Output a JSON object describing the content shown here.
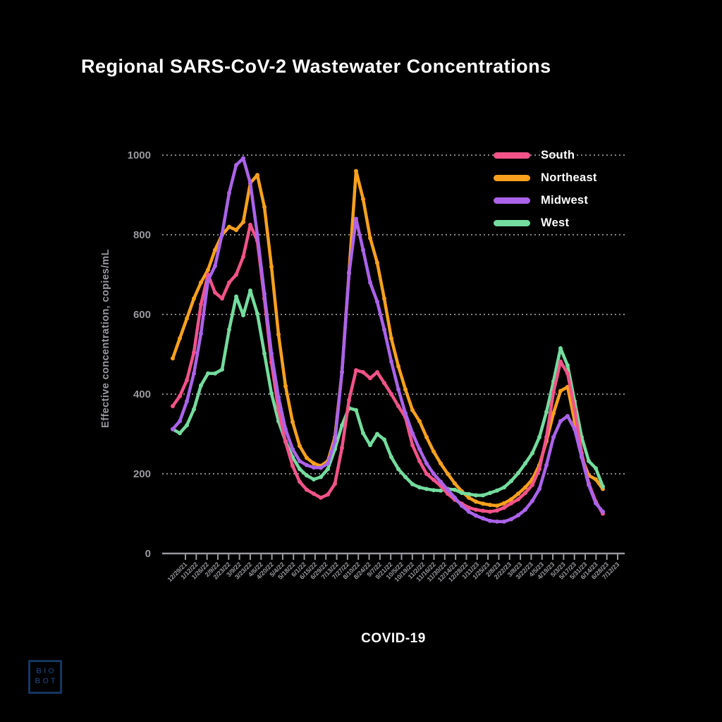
{
  "title": "Regional SARS-CoV-2 Wastewater Concentrations",
  "branding": {
    "logo_line1": "BIO",
    "logo_line2": "BOT",
    "logo_color": "#16365f"
  },
  "chart_data": {
    "type": "line",
    "title": "Regional SARS-CoV-2 Wastewater Concentrations",
    "xlabel": "COVID-19",
    "ylabel": "Effective concentration, copies/mL",
    "ylim": [
      0,
      1000
    ],
    "yticks": [
      0,
      200,
      400,
      600,
      800,
      1000
    ],
    "grid": "horizontal dashed gridlines on",
    "legend_position": "top-right",
    "axis_color": "#98989e",
    "x_tick_labels": [
      "12/29/21",
      "1/12/22",
      "1/26/22",
      "2/9/22",
      "2/23/22",
      "3/9/22",
      "3/23/22",
      "4/6/22",
      "4/20/22",
      "5/4/22",
      "5/18/22",
      "6/1/22",
      "6/15/22",
      "6/29/22",
      "7/13/22",
      "7/27/22",
      "8/10/22",
      "8/24/22",
      "9/7/22",
      "9/21/22",
      "10/5/22",
      "10/19/22",
      "11/2/22",
      "11/16/22",
      "11/30/22",
      "12/14/22",
      "12/28/22",
      "1/11/23",
      "1/25/23",
      "2/8/23",
      "2/22/23",
      "3/8/23",
      "3/22/23",
      "4/5/23",
      "4/19/23",
      "5/3/23",
      "5/17/23",
      "5/31/23",
      "6/14/23",
      "6/28/23",
      "7/12/23"
    ],
    "series": [
      {
        "name": "South",
        "color": "#F25389",
        "values": [
          370,
          395,
          435,
          505,
          625,
          700,
          655,
          640,
          680,
          700,
          745,
          825,
          785,
          640,
          480,
          360,
          280,
          220,
          180,
          160,
          150,
          140,
          148,
          175,
          265,
          385,
          460,
          455,
          440,
          455,
          428,
          400,
          370,
          342,
          272,
          232,
          200,
          185,
          170,
          150,
          135,
          125,
          115,
          110,
          107,
          105,
          108,
          115,
          126,
          136,
          152,
          172,
          212,
          292,
          405,
          482,
          452,
          362,
          252,
          176,
          130,
          100
        ]
      },
      {
        "name": "Northeast",
        "color": "#F9A11E",
        "values": [
          490,
          540,
          590,
          640,
          680,
          712,
          762,
          800,
          820,
          812,
          832,
          930,
          950,
          870,
          720,
          550,
          420,
          330,
          270,
          240,
          226,
          220,
          232,
          292,
          455,
          705,
          960,
          890,
          792,
          730,
          640,
          540,
          470,
          412,
          360,
          332,
          292,
          256,
          226,
          200,
          176,
          156,
          140,
          130,
          125,
          122,
          120,
          126,
          136,
          150,
          166,
          186,
          222,
          282,
          352,
          408,
          418,
          332,
          242,
          196,
          186,
          162
        ]
      },
      {
        "name": "Midwest",
        "color": "#AB63EA",
        "values": [
          312,
          332,
          382,
          452,
          552,
          685,
          722,
          802,
          905,
          975,
          992,
          930,
          800,
          652,
          502,
          392,
          312,
          262,
          232,
          222,
          216,
          215,
          226,
          282,
          455,
          702,
          840,
          762,
          680,
          632,
          562,
          482,
          412,
          352,
          302,
          262,
          226,
          200,
          180,
          160,
          140,
          120,
          105,
          95,
          88,
          82,
          80,
          80,
          86,
          96,
          110,
          132,
          162,
          222,
          292,
          332,
          345,
          312,
          242,
          172,
          126,
          105
        ]
      },
      {
        "name": "West",
        "color": "#74DC9E",
        "values": [
          312,
          302,
          322,
          362,
          422,
          452,
          452,
          462,
          562,
          645,
          598,
          660,
          602,
          502,
          402,
          332,
          282,
          242,
          212,
          196,
          186,
          192,
          212,
          262,
          322,
          365,
          360,
          302,
          272,
          300,
          286,
          242,
          212,
          192,
          174,
          166,
          162,
          159,
          158,
          162,
          160,
          152,
          149,
          146,
          146,
          152,
          158,
          166,
          182,
          202,
          226,
          252,
          292,
          355,
          432,
          515,
          472,
          382,
          292,
          232,
          214,
          168
        ]
      }
    ]
  }
}
